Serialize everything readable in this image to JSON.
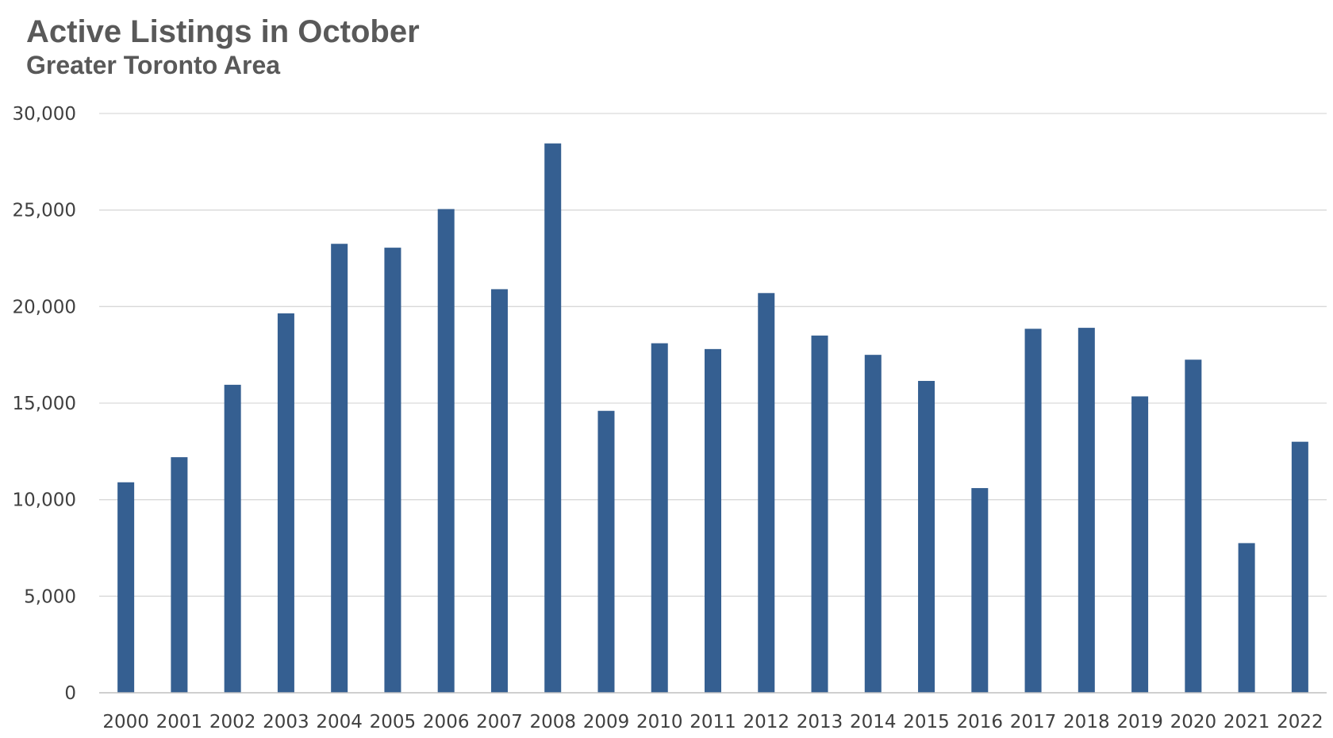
{
  "chart_data": {
    "type": "bar",
    "title": "Active Listings in October",
    "subtitle": "Greater Toronto Area",
    "xlabel": "",
    "ylabel": "",
    "categories": [
      "2000",
      "2001",
      "2002",
      "2003",
      "2004",
      "2005",
      "2006",
      "2007",
      "2008",
      "2009",
      "2010",
      "2011",
      "2012",
      "2013",
      "2014",
      "2015",
      "2016",
      "2017",
      "2018",
      "2019",
      "2020",
      "2021",
      "2022"
    ],
    "values": [
      10900,
      12200,
      15950,
      19650,
      23250,
      23050,
      25050,
      20900,
      28450,
      14600,
      18100,
      17800,
      20700,
      18500,
      17500,
      16150,
      10600,
      18850,
      18900,
      15350,
      17250,
      7750,
      13000
    ],
    "ylim": [
      0,
      30000
    ],
    "yticks": [
      0,
      5000,
      10000,
      15000,
      20000,
      25000,
      30000
    ],
    "ytick_labels": [
      "0",
      "5,000",
      "10,000",
      "15,000",
      "20,000",
      "25,000",
      "30,000"
    ],
    "grid": true,
    "legend": "none",
    "colors": {
      "bar": "#355F91",
      "grid": "#D9D9D9",
      "axis": "#BFBFBF",
      "text": "#404040",
      "title": "#595959"
    }
  }
}
